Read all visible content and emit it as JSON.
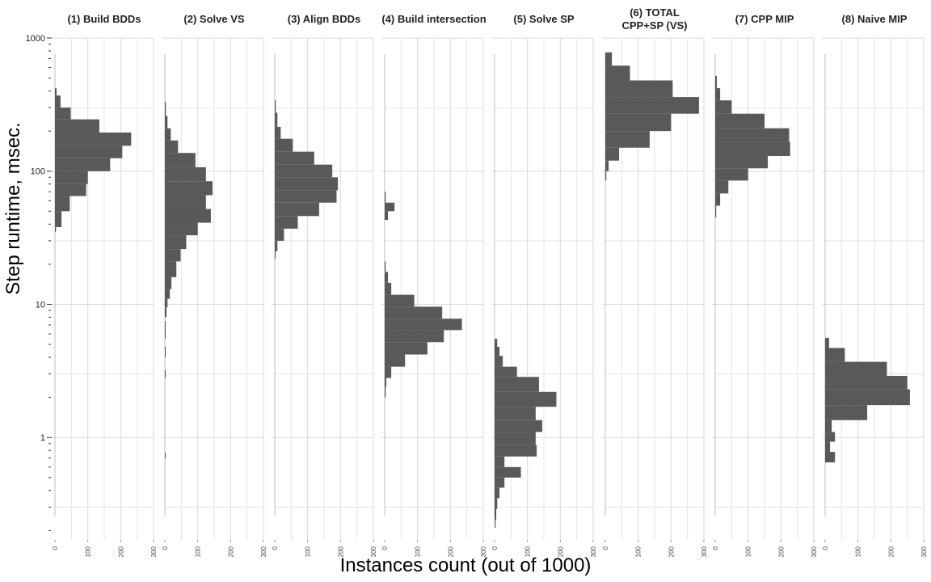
{
  "figure": {
    "ylabel": "Step runtime, msec.",
    "xlabel": "Instances count (out of 1000)"
  },
  "chart_data": {
    "type": "bar",
    "orientation": "horizontal-histogram",
    "y_scale": "log10",
    "ylim": [
      0.17,
      1000
    ],
    "y_ticks": [
      1,
      10,
      100,
      1000
    ],
    "y_tick_labels": [
      "1",
      "10",
      "100",
      "1000"
    ],
    "xlim": [
      0,
      300
    ],
    "x_ticks": [
      0,
      100,
      200,
      300
    ],
    "x_tick_labels": [
      "0",
      "100",
      "200",
      "300"
    ],
    "grid": true,
    "bar_color": "#595959",
    "panels": [
      {
        "title": "(1) Build BDDs",
        "bins": [
          [
            35,
            38,
            3
          ],
          [
            38,
            50,
            20
          ],
          [
            50,
            65,
            45
          ],
          [
            65,
            80,
            95
          ],
          [
            80,
            100,
            100
          ],
          [
            100,
            125,
            168
          ],
          [
            125,
            155,
            205
          ],
          [
            155,
            195,
            232
          ],
          [
            195,
            245,
            135
          ],
          [
            245,
            300,
            48
          ],
          [
            300,
            370,
            17
          ],
          [
            370,
            420,
            5
          ]
        ]
      },
      {
        "title": "(2) Solve VS",
        "bins": [
          [
            0.7,
            0.77,
            2
          ],
          [
            2.8,
            3.2,
            1
          ],
          [
            4.0,
            4.8,
            1
          ],
          [
            5.5,
            6.5,
            1
          ],
          [
            6.5,
            7.5,
            1
          ],
          [
            8,
            9.5,
            5
          ],
          [
            9.5,
            11,
            8
          ],
          [
            11,
            13,
            15
          ],
          [
            13,
            16,
            20
          ],
          [
            16,
            21,
            35
          ],
          [
            21,
            26,
            48
          ],
          [
            26,
            33,
            65
          ],
          [
            33,
            41,
            100
          ],
          [
            41,
            52,
            140
          ],
          [
            52,
            66,
            125
          ],
          [
            66,
            84,
            145
          ],
          [
            84,
            107,
            125
          ],
          [
            107,
            137,
            93
          ],
          [
            137,
            170,
            40
          ],
          [
            170,
            210,
            18
          ],
          [
            210,
            260,
            8
          ],
          [
            260,
            330,
            3
          ]
        ]
      },
      {
        "title": "(3) Align BDDs",
        "bins": [
          [
            22,
            25,
            2
          ],
          [
            25,
            30,
            8
          ],
          [
            30,
            37,
            28
          ],
          [
            37,
            46,
            70
          ],
          [
            46,
            58,
            135
          ],
          [
            58,
            72,
            188
          ],
          [
            72,
            90,
            192
          ],
          [
            90,
            112,
            175
          ],
          [
            112,
            140,
            120
          ],
          [
            140,
            175,
            55
          ],
          [
            175,
            215,
            18
          ],
          [
            215,
            275,
            8
          ],
          [
            275,
            340,
            3
          ]
        ]
      },
      {
        "title": "(4) Build intersection",
        "bins": [
          [
            2.0,
            2.4,
            3
          ],
          [
            2.4,
            2.8,
            5
          ],
          [
            2.8,
            3.4,
            20
          ],
          [
            3.4,
            4.2,
            62
          ],
          [
            4.2,
            5.2,
            130
          ],
          [
            5.2,
            6.4,
            180
          ],
          [
            6.4,
            7.8,
            235
          ],
          [
            7.8,
            9.6,
            175
          ],
          [
            9.6,
            11.8,
            90
          ],
          [
            11.8,
            14.5,
            20
          ],
          [
            14.5,
            17.5,
            10
          ],
          [
            17.5,
            21,
            3
          ],
          [
            43,
            50,
            10
          ],
          [
            50,
            58,
            30
          ],
          [
            58,
            70,
            3
          ]
        ]
      },
      {
        "title": "(5) Solve SP",
        "bins": [
          [
            0.21,
            0.24,
            3
          ],
          [
            0.24,
            0.29,
            5
          ],
          [
            0.29,
            0.35,
            8
          ],
          [
            0.35,
            0.42,
            15
          ],
          [
            0.42,
            0.5,
            30
          ],
          [
            0.5,
            0.6,
            80
          ],
          [
            0.6,
            0.72,
            30
          ],
          [
            0.72,
            0.88,
            128
          ],
          [
            0.88,
            1.1,
            125
          ],
          [
            1.1,
            1.35,
            145
          ],
          [
            1.35,
            1.7,
            125
          ],
          [
            1.7,
            2.2,
            188
          ],
          [
            2.2,
            2.85,
            135
          ],
          [
            2.85,
            3.4,
            68
          ],
          [
            3.4,
            4.1,
            25
          ],
          [
            4.1,
            4.8,
            15
          ],
          [
            4.8,
            5.5,
            8
          ]
        ]
      },
      {
        "title": "(6) TOTAL\nCPP+SP (VS)",
        "bins": [
          [
            85,
            100,
            3
          ],
          [
            100,
            120,
            10
          ],
          [
            120,
            150,
            42
          ],
          [
            150,
            200,
            135
          ],
          [
            200,
            270,
            200
          ],
          [
            270,
            360,
            285
          ],
          [
            360,
            480,
            205
          ],
          [
            480,
            620,
            75
          ],
          [
            620,
            780,
            20
          ]
        ]
      },
      {
        "title": "(7) CPP MIP",
        "bins": [
          [
            45,
            55,
            3
          ],
          [
            55,
            68,
            15
          ],
          [
            68,
            85,
            40
          ],
          [
            85,
            105,
            100
          ],
          [
            105,
            130,
            160
          ],
          [
            130,
            165,
            228
          ],
          [
            165,
            210,
            225
          ],
          [
            210,
            270,
            150
          ],
          [
            270,
            340,
            50
          ],
          [
            340,
            420,
            15
          ],
          [
            420,
            520,
            5
          ]
        ]
      },
      {
        "title": "(8) Naive MIP",
        "bins": [
          [
            0.65,
            0.78,
            30
          ],
          [
            0.78,
            0.93,
            15
          ],
          [
            0.93,
            1.1,
            30
          ],
          [
            1.1,
            1.35,
            20
          ],
          [
            1.35,
            1.75,
            128
          ],
          [
            1.75,
            2.3,
            258
          ],
          [
            2.3,
            2.9,
            250
          ],
          [
            2.9,
            3.7,
            188
          ],
          [
            3.7,
            4.7,
            60
          ],
          [
            4.7,
            5.6,
            12
          ]
        ]
      }
    ]
  }
}
